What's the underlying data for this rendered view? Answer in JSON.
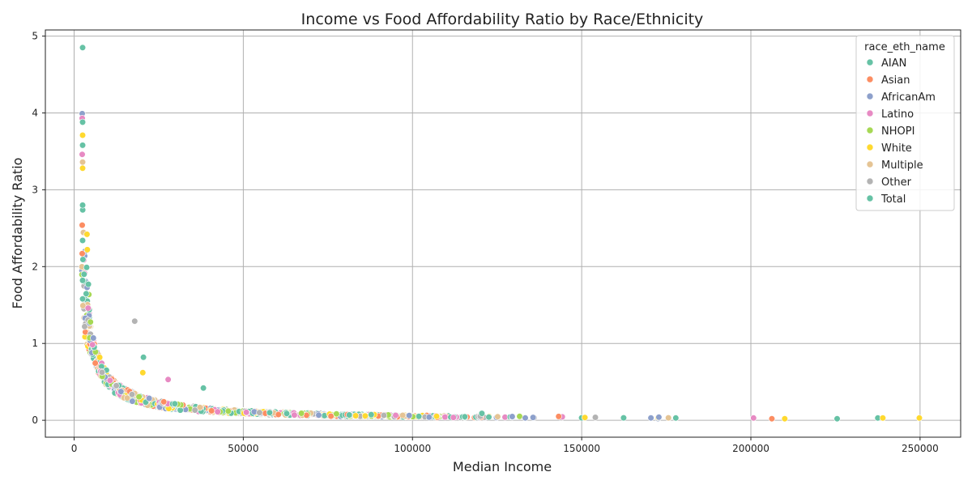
{
  "chart_data": {
    "type": "scatter",
    "title": "Income vs Food Affordability Ratio by Race/Ethnicity",
    "xlabel": "Median Income",
    "ylabel": "Food Affordability Ratio",
    "xlim": [
      -8500,
      262000
    ],
    "ylim": [
      -0.22,
      5.08
    ],
    "xticks": [
      0,
      50000,
      100000,
      150000,
      200000,
      250000
    ],
    "yticks": [
      0,
      1,
      2,
      3,
      4,
      5
    ],
    "grid": true,
    "legend_title": "race_eth_name",
    "legend_position": "top-right",
    "series": [
      {
        "name": "AIAN",
        "color": "#66c2a5"
      },
      {
        "name": "Asian",
        "color": "#fc8d62"
      },
      {
        "name": "AfricanAm",
        "color": "#8da0cb"
      },
      {
        "name": "Latino",
        "color": "#e78ac3"
      },
      {
        "name": "NHOPI",
        "color": "#a6d854"
      },
      {
        "name": "White",
        "color": "#ffd92f"
      },
      {
        "name": "Multiple",
        "color": "#e5c494"
      },
      {
        "name": "Other",
        "color": "#b3b3b3"
      },
      {
        "name": "Total",
        "color": "#66c2a5"
      }
    ],
    "notable_points": [
      {
        "series": "Total",
        "x": 2500,
        "y": 4.85
      },
      {
        "series": "AfricanAm",
        "x": 2400,
        "y": 3.99
      },
      {
        "series": "Latino",
        "x": 2400,
        "y": 3.93
      },
      {
        "series": "Total",
        "x": 2500,
        "y": 3.88
      },
      {
        "series": "White",
        "x": 2500,
        "y": 3.71
      },
      {
        "series": "Total",
        "x": 2500,
        "y": 3.58
      },
      {
        "series": "Latino",
        "x": 2400,
        "y": 3.46
      },
      {
        "series": "Multiple",
        "x": 2500,
        "y": 3.36
      },
      {
        "series": "White",
        "x": 2500,
        "y": 3.28
      },
      {
        "series": "Total",
        "x": 2500,
        "y": 2.8
      },
      {
        "series": "Asian",
        "x": 2400,
        "y": 2.54
      },
      {
        "series": "White",
        "x": 3800,
        "y": 2.42
      },
      {
        "series": "Total",
        "x": 2500,
        "y": 2.34
      },
      {
        "series": "White",
        "x": 3900,
        "y": 2.22
      },
      {
        "series": "Asian",
        "x": 2400,
        "y": 2.17
      },
      {
        "series": "AIAN",
        "x": 3700,
        "y": 1.99
      },
      {
        "series": "Total",
        "x": 2500,
        "y": 1.82
      },
      {
        "series": "Total",
        "x": 4200,
        "y": 1.77
      },
      {
        "series": "Total",
        "x": 2500,
        "y": 1.58
      },
      {
        "series": "Other",
        "x": 17900,
        "y": 1.29
      },
      {
        "series": "Total",
        "x": 20500,
        "y": 0.82
      },
      {
        "series": "Total",
        "x": 38200,
        "y": 0.42
      },
      {
        "series": "White",
        "x": 20300,
        "y": 0.62
      },
      {
        "series": "Latino",
        "x": 27800,
        "y": 0.53
      },
      {
        "series": "Total",
        "x": 120500,
        "y": 0.09
      },
      {
        "series": "Asian",
        "x": 143200,
        "y": 0.05
      },
      {
        "series": "AfricanAm",
        "x": 172800,
        "y": 0.04
      },
      {
        "series": "Total",
        "x": 177800,
        "y": 0.03
      },
      {
        "series": "Latino",
        "x": 200800,
        "y": 0.03
      },
      {
        "series": "Asian",
        "x": 206200,
        "y": 0.02
      },
      {
        "series": "White",
        "x": 210000,
        "y": 0.02
      },
      {
        "series": "Total",
        "x": 225500,
        "y": 0.02
      },
      {
        "series": "Total",
        "x": 237500,
        "y": 0.03
      },
      {
        "series": "White",
        "x": 239000,
        "y": 0.03
      },
      {
        "series": "White",
        "x": 249800,
        "y": 0.03
      }
    ]
  }
}
